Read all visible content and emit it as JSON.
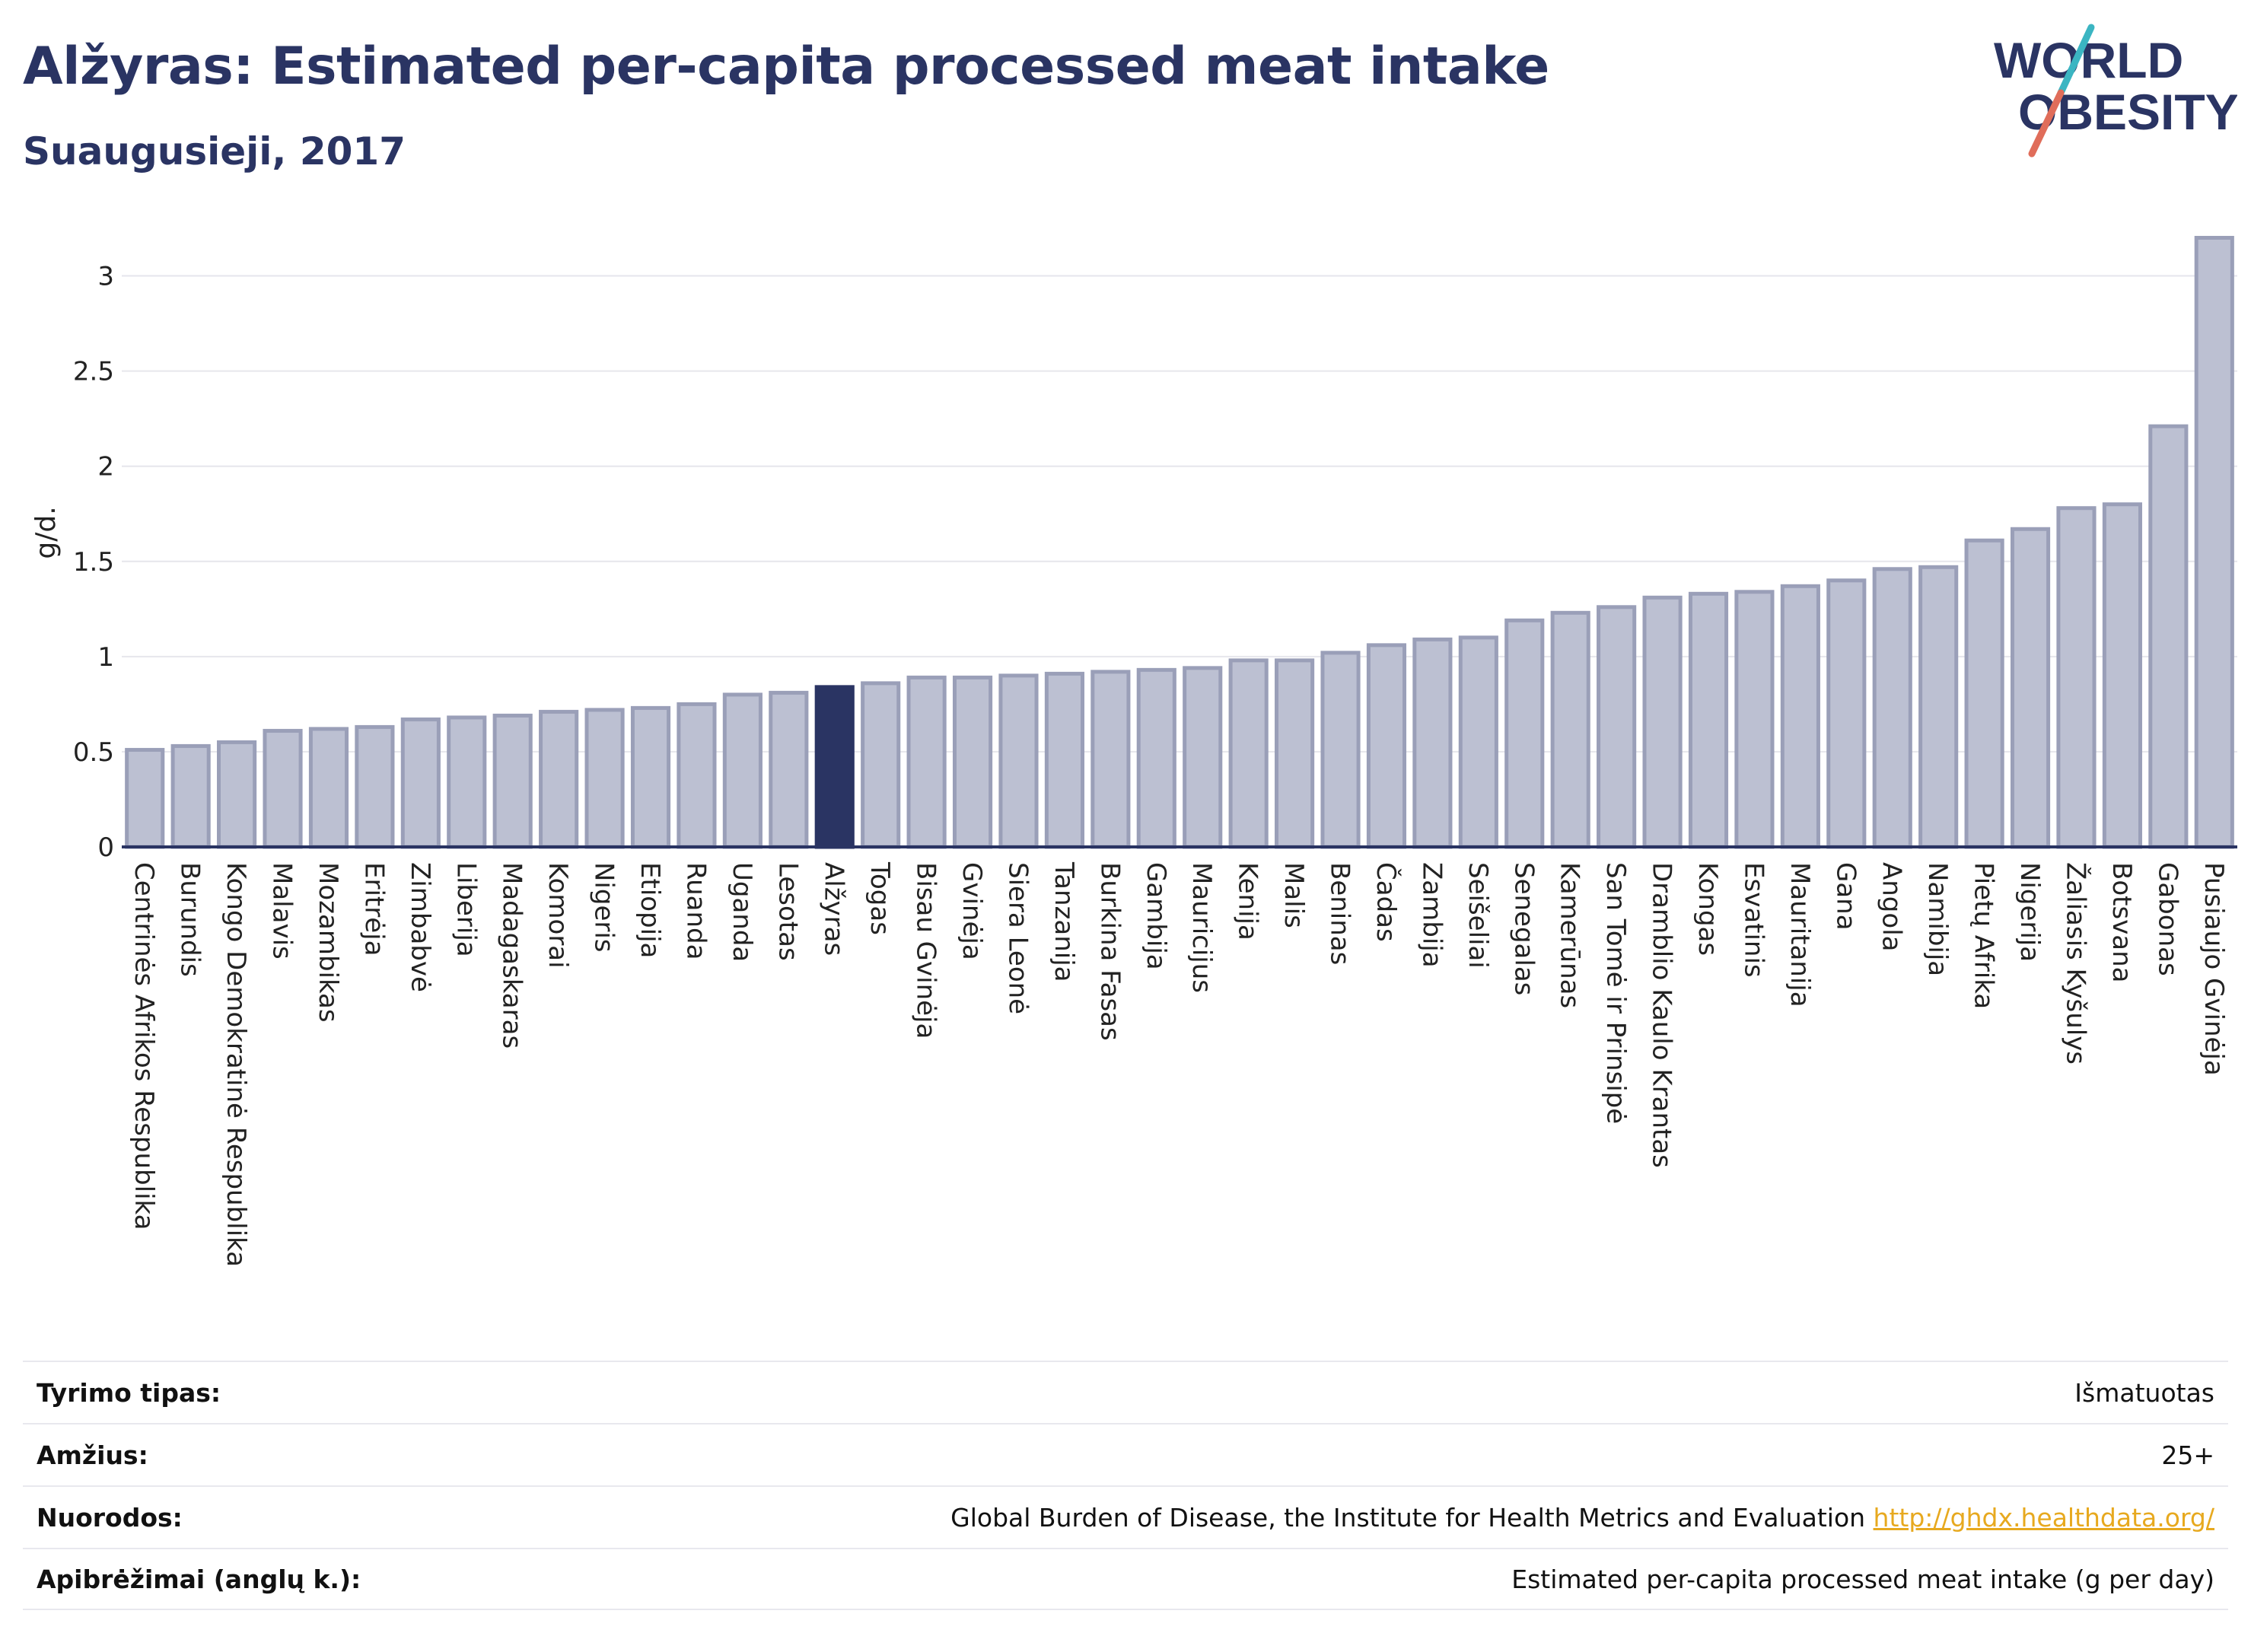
{
  "header": {
    "title": "Alžyras: Estimated per-capita processed meat intake",
    "subtitle": "Suaugusieji, 2017"
  },
  "logo": {
    "line1": "WORLD",
    "line2": "OBESITY"
  },
  "colors": {
    "highlight": "#2a3463",
    "bar_fill": "#bcc0d2",
    "bar_stroke": "#9a9fb8",
    "grid": "#e6e6ec",
    "link": "#e7a91f"
  },
  "chart_data": {
    "type": "bar",
    "title": "Alžyras: Estimated per-capita processed meat intake",
    "subtitle": "Suaugusieji, 2017",
    "xlabel": "",
    "ylabel": "g/d.",
    "ylim": [
      0,
      3.25
    ],
    "yticks": [
      0,
      0.5,
      1,
      1.5,
      2,
      2.5,
      3
    ],
    "ytick_labels": [
      "0",
      "0.5",
      "1",
      "1.5",
      "2",
      "2.5",
      "3"
    ],
    "grid": true,
    "highlight": "Alžyras",
    "categories": [
      "Centrinės Afrikos Respublika",
      "Burundis",
      "Kongo Demokratinė Respublika",
      "Malavis",
      "Mozambikas",
      "Eritrėja",
      "Zimbabvė",
      "Liberija",
      "Madagaskaras",
      "Komorai",
      "Nigeris",
      "Etiopija",
      "Ruanda",
      "Uganda",
      "Lesotas",
      "Alžyras",
      "Togas",
      "Bisau Gvinėja",
      "Gvinėja",
      "Siera Leonė",
      "Tanzanija",
      "Burkina Fasas",
      "Gambija",
      "Mauricijus",
      "Kenija",
      "Malis",
      "Beninas",
      "Čadas",
      "Zambija",
      "Seišeliai",
      "Senegalas",
      "Kamerūnas",
      "San Tomė ir Prinsipė",
      "Dramblio Kaulo Krantas",
      "Kongas",
      "Esvatinis",
      "Mauritanija",
      "Gana",
      "Angola",
      "Namibija",
      "Pietų Afrika",
      "Nigerija",
      "Žaliasis Kyšulys",
      "Botsvana",
      "Gabonas",
      "Pusiaujo Gvinėja"
    ],
    "values": [
      0.51,
      0.53,
      0.55,
      0.61,
      0.62,
      0.63,
      0.67,
      0.68,
      0.69,
      0.71,
      0.72,
      0.73,
      0.75,
      0.8,
      0.81,
      0.84,
      0.86,
      0.89,
      0.89,
      0.9,
      0.91,
      0.92,
      0.93,
      0.94,
      0.98,
      0.98,
      1.02,
      1.06,
      1.09,
      1.1,
      1.19,
      1.23,
      1.26,
      1.31,
      1.33,
      1.34,
      1.37,
      1.4,
      1.46,
      1.47,
      1.61,
      1.67,
      1.78,
      1.8,
      2.21,
      3.2
    ]
  },
  "info": [
    {
      "key": "Tyrimo tipas:",
      "value": "Išmatuotas"
    },
    {
      "key": "Amžius:",
      "value": "25+"
    },
    {
      "key": "Nuorodos:",
      "value": "Global Burden of Disease, the Institute for Health Metrics and Evaluation",
      "link": "http://ghdx.healthdata.org/"
    },
    {
      "key": "Apibrėžimai (anglų k.):",
      "value": "Estimated per-capita processed meat intake (g per day)"
    }
  ]
}
